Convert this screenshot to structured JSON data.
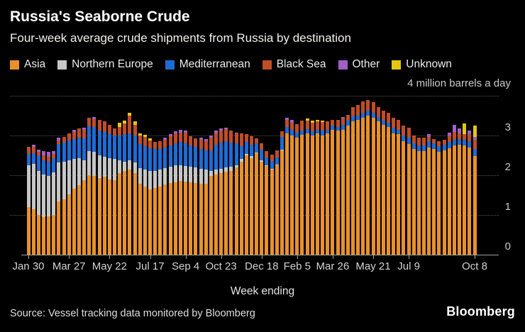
{
  "header": {
    "title": "Russia's Seaborne Crude",
    "subtitle": "Four-week average crude shipments from Russia by destination"
  },
  "legend": {
    "items": [
      {
        "label": "Asia",
        "color": "#E8912C"
      },
      {
        "label": "Northern Europe",
        "color": "#C6C6C6"
      },
      {
        "label": "Mediterranean",
        "color": "#1F6BD4"
      },
      {
        "label": "Black Sea",
        "color": "#BE4D28"
      },
      {
        "label": "Other",
        "color": "#A15FC7"
      },
      {
        "label": "Unknown",
        "color": "#E3C712"
      }
    ]
  },
  "axis": {
    "unit_label": "4 million barrels a day",
    "y_ticks": [
      3,
      2,
      1,
      0
    ],
    "x_axis_title": "Week ending",
    "x_ticks": [
      {
        "label": "Jan 30",
        "index": 0
      },
      {
        "label": "Mar 27",
        "index": 8
      },
      {
        "label": "May 22",
        "index": 16
      },
      {
        "label": "Jul 17",
        "index": 24
      },
      {
        "label": "Sep 4",
        "index": 31
      },
      {
        "label": "Oct 23",
        "index": 38
      },
      {
        "label": "Dec 18",
        "index": 46
      },
      {
        "label": "Feb 5",
        "index": 53
      },
      {
        "label": "Mar 26",
        "index": 60
      },
      {
        "label": "May 21",
        "index": 68
      },
      {
        "label": "Jul 9",
        "index": 75
      },
      {
        "label": "Oct 8",
        "index": 88
      }
    ]
  },
  "footer": {
    "source": "Source: Vessel tracking data monitored by Bloomberg",
    "logo": "Bloomberg"
  },
  "chart_data": {
    "type": "bar",
    "stacked": true,
    "title": "Russia's Seaborne Crude",
    "subtitle": "Four-week average crude shipments from Russia by destination",
    "ylabel": "million barrels a day",
    "xlabel": "Week ending",
    "ylim": [
      0,
      4
    ],
    "grid": "dotted horizontal gridlines at 1,2,3,4; solid baseline at 0",
    "legend_position": "top",
    "n_bars": 89,
    "x_note": "weekly bars, week ending Jan 30 2022 through Oct 8 2023; values in million barrels a day (estimated from chart)",
    "x_tick_labels": [
      "Jan 30",
      "Mar 27",
      "May 22",
      "Jul 17",
      "Sep 4",
      "Oct 23",
      "Dec 18",
      "Feb 5",
      "Mar 26",
      "May 21",
      "Jul 9",
      "Oct 8"
    ],
    "series": [
      {
        "name": "Asia",
        "color": "#E8912C",
        "values": [
          1.2,
          1.14,
          1.0,
          0.95,
          0.96,
          1.0,
          1.34,
          1.39,
          1.52,
          1.66,
          1.75,
          1.88,
          2.0,
          1.98,
          1.93,
          1.96,
          1.89,
          1.88,
          2.05,
          2.11,
          2.14,
          2.05,
          1.78,
          1.72,
          1.65,
          1.68,
          1.71,
          1.77,
          1.8,
          1.82,
          1.86,
          1.84,
          1.82,
          1.8,
          1.78,
          1.78,
          1.98,
          2.02,
          2.05,
          2.09,
          2.11,
          2.2,
          2.34,
          2.5,
          2.43,
          2.55,
          2.34,
          2.23,
          2.14,
          2.25,
          2.62,
          3.05,
          3.0,
          2.95,
          3.02,
          3.06,
          3.0,
          3.05,
          3.0,
          3.05,
          3.15,
          3.12,
          3.15,
          3.25,
          3.36,
          3.39,
          3.45,
          3.5,
          3.45,
          3.36,
          3.27,
          3.21,
          3.05,
          3.04,
          2.86,
          2.79,
          2.66,
          2.6,
          2.6,
          2.7,
          2.66,
          2.59,
          2.63,
          2.68,
          2.75,
          2.77,
          2.75,
          2.7,
          2.48
        ]
      },
      {
        "name": "Northern Europe",
        "color": "#C6C6C6",
        "values": [
          1.05,
          1.14,
          1.11,
          1.07,
          1.02,
          1.07,
          0.98,
          0.95,
          0.86,
          0.75,
          0.68,
          0.5,
          0.61,
          0.61,
          0.57,
          0.5,
          0.54,
          0.53,
          0.33,
          0.23,
          0.24,
          0.27,
          0.4,
          0.42,
          0.46,
          0.43,
          0.43,
          0.41,
          0.41,
          0.43,
          0.39,
          0.39,
          0.39,
          0.4,
          0.38,
          0.36,
          0.13,
          0.12,
          0.11,
          0.11,
          0.1,
          0.05,
          0.07,
          0.04,
          0.05,
          0.02,
          0.03,
          0.02,
          0.02,
          0.02,
          0.02,
          0,
          0,
          0,
          0,
          0,
          0,
          0,
          0,
          0,
          0,
          0,
          0,
          0,
          0,
          0,
          0,
          0,
          0,
          0,
          0,
          0,
          0,
          0,
          0,
          0,
          0,
          0,
          0,
          0,
          0,
          0,
          0,
          0,
          0,
          0,
          0,
          0,
          0
        ]
      },
      {
        "name": "Mediterranean",
        "color": "#1F6BD4",
        "values": [
          0.28,
          0.27,
          0.39,
          0.36,
          0.36,
          0.36,
          0.47,
          0.48,
          0.5,
          0.5,
          0.52,
          0.55,
          0.62,
          0.62,
          0.63,
          0.63,
          0.62,
          0.59,
          0.62,
          0.7,
          0.67,
          0.68,
          0.6,
          0.6,
          0.57,
          0.55,
          0.52,
          0.52,
          0.54,
          0.55,
          0.59,
          0.57,
          0.54,
          0.51,
          0.5,
          0.48,
          0.52,
          0.63,
          0.66,
          0.66,
          0.61,
          0.55,
          0.32,
          0.3,
          0.29,
          0.24,
          0.27,
          0.2,
          0.2,
          0.18,
          0.33,
          0.16,
          0.15,
          0.12,
          0.1,
          0.1,
          0.1,
          0.1,
          0.12,
          0.1,
          0.1,
          0.1,
          0.12,
          0.12,
          0.12,
          0.11,
          0.12,
          0.13,
          0.12,
          0.11,
          0.1,
          0.11,
          0.15,
          0.1,
          0.14,
          0.16,
          0.14,
          0.15,
          0.15,
          0.16,
          0.14,
          0.14,
          0.14,
          0.16,
          0.14,
          0.14,
          0.14,
          0.16,
          0.18
        ]
      },
      {
        "name": "Black Sea",
        "color": "#BE4D28",
        "values": [
          0.18,
          0.17,
          0.09,
          0.12,
          0.12,
          0.1,
          0.09,
          0.14,
          0.17,
          0.18,
          0.23,
          0.22,
          0.22,
          0.2,
          0.26,
          0.27,
          0.22,
          0.18,
          0.21,
          0.26,
          0.45,
          0.27,
          0.22,
          0.22,
          0.2,
          0.18,
          0.2,
          0.19,
          0.23,
          0.25,
          0.23,
          0.27,
          0.23,
          0.22,
          0.24,
          0.24,
          0.32,
          0.28,
          0.31,
          0.3,
          0.31,
          0.25,
          0.32,
          0.2,
          0.21,
          0.12,
          0.16,
          0.16,
          0.16,
          0.17,
          0.14,
          0.18,
          0.18,
          0.22,
          0.25,
          0.22,
          0.23,
          0.2,
          0.22,
          0.2,
          0.15,
          0.18,
          0.15,
          0.15,
          0.24,
          0.27,
          0.29,
          0.27,
          0.27,
          0.24,
          0.26,
          0.25,
          0.25,
          0.25,
          0.25,
          0.25,
          0.2,
          0.2,
          0.2,
          0.11,
          0.11,
          0.13,
          0.12,
          0.16,
          0.2,
          0.14,
          0.15,
          0.18,
          0.23
        ]
      },
      {
        "name": "Other",
        "color": "#A15FC7",
        "values": [
          0,
          0.05,
          0.05,
          0.11,
          0.13,
          0.08,
          0.07,
          0,
          0,
          0.05,
          0,
          0.05,
          0,
          0.05,
          0,
          0,
          0,
          0,
          0,
          0,
          0,
          0,
          0,
          0,
          0,
          0,
          0,
          0.06,
          0.06,
          0.06,
          0.07,
          0.06,
          0,
          0,
          0.04,
          0.05,
          0.05,
          0.08,
          0.05,
          0.04,
          0,
          0.03,
          0,
          0,
          0,
          0,
          0,
          0,
          0,
          0,
          0,
          0.06,
          0.06,
          0,
          0,
          0,
          0,
          0,
          0,
          0,
          0,
          0,
          0.05,
          0,
          0,
          0,
          0,
          0,
          0,
          0,
          0,
          0,
          0,
          0,
          0,
          0,
          0,
          0,
          0,
          0.07,
          0,
          0,
          0,
          0.07,
          0.18,
          0.13,
          0,
          0.09,
          0.08
        ]
      },
      {
        "name": "Unknown",
        "color": "#E3C712",
        "values": [
          0,
          0,
          0,
          0,
          0,
          0,
          0,
          0,
          0,
          0,
          0,
          0,
          0,
          0,
          0,
          0,
          0,
          0,
          0.12,
          0.08,
          0.07,
          0.09,
          0.06,
          0.06,
          0.05,
          0,
          0,
          0,
          0,
          0,
          0,
          0,
          0,
          0,
          0,
          0,
          0,
          0,
          0,
          0,
          0,
          0,
          0,
          0,
          0,
          0,
          0,
          0,
          0,
          0,
          0,
          0,
          0,
          0,
          0,
          0.05,
          0.05,
          0.05,
          0.04,
          0,
          0,
          0,
          0,
          0,
          0,
          0,
          0,
          0,
          0,
          0,
          0,
          0,
          0,
          0,
          0,
          0,
          0,
          0,
          0,
          0,
          0,
          0,
          0,
          0,
          0,
          0,
          0.26,
          0,
          0.28
        ]
      }
    ]
  }
}
